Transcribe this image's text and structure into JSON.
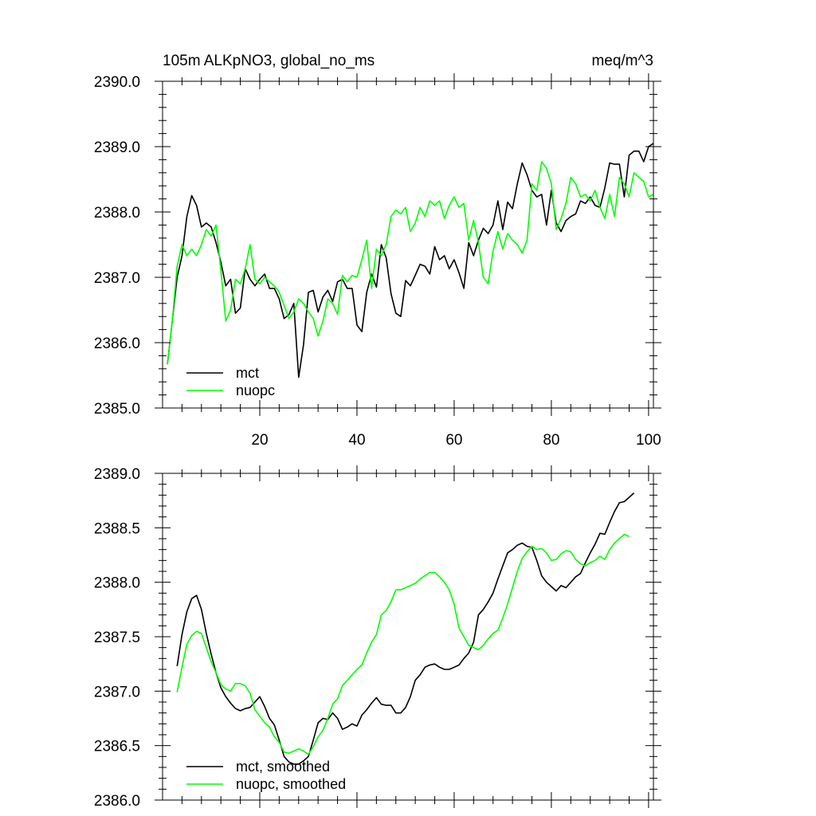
{
  "chart_data": [
    {
      "type": "line",
      "title": "105m ALKpNO3, global_no_ms",
      "units": "meq/m^3",
      "xlim": [
        0,
        101
      ],
      "ylim": [
        2385.0,
        2390.0
      ],
      "x_ticks": [
        20,
        40,
        60,
        80,
        100
      ],
      "x_tick_labels": [
        "20",
        "40",
        "60",
        "80",
        "100"
      ],
      "y_ticks": [
        2385.0,
        2386.0,
        2387.0,
        2388.0,
        2389.0,
        2390.0
      ],
      "y_tick_labels": [
        "2385.0",
        "2386.0",
        "2387.0",
        "2388.0",
        "2389.0",
        "2390.0"
      ],
      "legend_position": "bottom-left",
      "series": [
        {
          "name": "mct",
          "color": "#000000",
          "values": [
            2385.67,
            2386.33,
            2387.0,
            2387.33,
            2387.93,
            2388.25,
            2388.1,
            2387.77,
            2387.83,
            2387.77,
            2387.53,
            2387.23,
            2386.87,
            2386.97,
            2386.45,
            2386.53,
            2387.13,
            2386.97,
            2386.87,
            2386.97,
            2387.05,
            2386.83,
            2386.83,
            2386.67,
            2386.37,
            2386.43,
            2386.6,
            2385.47,
            2385.97,
            2386.77,
            2386.8,
            2386.47,
            2386.7,
            2386.8,
            2386.63,
            2386.93,
            2386.97,
            2386.83,
            2386.83,
            2386.27,
            2386.17,
            2386.77,
            2387.05,
            2386.85,
            2387.5,
            2387.3,
            2386.75,
            2386.45,
            2386.4,
            2386.95,
            2386.87,
            2387.03,
            2387.2,
            2387.17,
            2387.05,
            2387.47,
            2387.27,
            2387.33,
            2387.13,
            2387.27,
            2387.07,
            2386.83,
            2387.53,
            2387.33,
            2387.57,
            2387.75,
            2387.67,
            2387.8,
            2388.17,
            2387.73,
            2388.15,
            2388.05,
            2388.43,
            2388.75,
            2388.57,
            2388.33,
            2388.23,
            2388.27,
            2387.8,
            2388.33,
            2387.83,
            2387.7,
            2387.87,
            2387.93,
            2387.97,
            2388.17,
            2388.13,
            2388.23,
            2388.1,
            2388.07,
            2388.37,
            2388.75,
            2388.73,
            2388.73,
            2388.23,
            2388.87,
            2388.93,
            2388.93,
            2388.77,
            2389.0,
            2389.05
          ]
        },
        {
          "name": "nuopc",
          "color": "#00ff00",
          "values": [
            2385.67,
            2386.33,
            2387.17,
            2387.5,
            2387.33,
            2387.43,
            2387.33,
            2387.5,
            2387.73,
            2387.63,
            2387.8,
            2387.1,
            2386.33,
            2386.5,
            2386.97,
            2386.9,
            2387.13,
            2387.5,
            2386.97,
            2386.9,
            2387.0,
            2386.93,
            2386.87,
            2386.77,
            2386.57,
            2386.37,
            2386.47,
            2386.67,
            2386.6,
            2386.47,
            2386.37,
            2386.1,
            2386.33,
            2386.67,
            2386.6,
            2386.43,
            2387.03,
            2386.93,
            2387.03,
            2387.0,
            2387.27,
            2387.57,
            2386.83,
            2387.43,
            2387.33,
            2387.5,
            2387.93,
            2388.03,
            2387.97,
            2388.07,
            2387.7,
            2387.83,
            2388.07,
            2387.93,
            2388.17,
            2388.1,
            2388.17,
            2387.9,
            2388.1,
            2388.23,
            2388.07,
            2388.13,
            2387.57,
            2387.87,
            2387.53,
            2387.0,
            2386.9,
            2387.4,
            2387.7,
            2387.43,
            2387.67,
            2387.57,
            2387.5,
            2387.37,
            2387.57,
            2388.43,
            2388.33,
            2388.77,
            2388.67,
            2388.43,
            2387.73,
            2387.9,
            2388.13,
            2388.53,
            2388.43,
            2388.23,
            2388.27,
            2388.17,
            2388.33,
            2388.07,
            2387.9,
            2388.27,
            2387.93,
            2388.53,
            2388.43,
            2388.23,
            2388.6,
            2388.53,
            2388.47,
            2388.23,
            2388.27
          ]
        }
      ]
    },
    {
      "type": "line",
      "title": "",
      "xlim": [
        0,
        101
      ],
      "ylim": [
        2386.0,
        2389.0
      ],
      "x_ticks": [
        20,
        40,
        60,
        80,
        100
      ],
      "y_ticks": [
        2386.0,
        2386.5,
        2387.0,
        2387.5,
        2388.0,
        2388.5,
        2389.0
      ],
      "y_tick_labels": [
        "2386.0",
        "2386.5",
        "2387.0",
        "2387.5",
        "2388.0",
        "2388.5",
        "2389.0"
      ],
      "legend_position": "bottom-left",
      "series": [
        {
          "name": "mct, smoothed",
          "color": "#000000",
          "x_start": 3,
          "values": [
            2387.23,
            2387.52,
            2387.73,
            2387.85,
            2387.88,
            2387.75,
            2387.53,
            2387.34,
            2387.17,
            2387.03,
            2386.95,
            2386.89,
            2386.84,
            2386.82,
            2386.84,
            2386.85,
            2386.9,
            2386.95,
            2386.86,
            2386.75,
            2386.69,
            2386.55,
            2386.4,
            2386.35,
            2386.33,
            2386.33,
            2386.36,
            2386.4,
            2386.55,
            2386.71,
            2386.75,
            2386.74,
            2386.8,
            2386.75,
            2386.65,
            2386.67,
            2386.7,
            2386.68,
            2386.78,
            2386.83,
            2386.89,
            2386.94,
            2386.88,
            2386.87,
            2386.87,
            2386.8,
            2386.8,
            2386.85,
            2386.95,
            2387.1,
            2387.15,
            2387.22,
            2387.24,
            2387.25,
            2387.22,
            2387.2,
            2387.2,
            2387.22,
            2387.24,
            2387.3,
            2387.35,
            2387.45,
            2387.7,
            2387.75,
            2387.82,
            2387.9,
            2388.03,
            2388.15,
            2388.27,
            2388.3,
            2388.34,
            2388.36,
            2388.33,
            2388.32,
            2388.2,
            2388.06,
            2388.0,
            2387.96,
            2387.92,
            2387.97,
            2387.95,
            2388.0,
            2388.05,
            2388.08,
            2388.18,
            2388.27,
            2388.35,
            2388.45,
            2388.44,
            2388.55,
            2388.65,
            2388.73,
            2388.74,
            2388.78,
            2388.82
          ]
        },
        {
          "name": "nuopc, smoothed",
          "color": "#00ff00",
          "x_start": 3,
          "values": [
            2386.99,
            2387.22,
            2387.43,
            2387.51,
            2387.55,
            2387.53,
            2387.4,
            2387.27,
            2387.17,
            2387.06,
            2387.02,
            2387.0,
            2387.07,
            2387.07,
            2387.05,
            2386.98,
            2386.83,
            2386.77,
            2386.71,
            2386.67,
            2386.58,
            2386.53,
            2386.44,
            2386.43,
            2386.45,
            2386.47,
            2386.45,
            2386.42,
            2386.49,
            2386.58,
            2386.64,
            2386.75,
            2386.88,
            2386.93,
            2387.05,
            2387.1,
            2387.15,
            2387.2,
            2387.24,
            2387.35,
            2387.45,
            2387.52,
            2387.7,
            2387.74,
            2387.82,
            2387.93,
            2387.93,
            2387.95,
            2387.97,
            2387.99,
            2388.03,
            2388.06,
            2388.09,
            2388.09,
            2388.05,
            2388.0,
            2387.93,
            2387.8,
            2387.58,
            2387.5,
            2387.42,
            2387.4,
            2387.38,
            2387.42,
            2387.48,
            2387.53,
            2387.56,
            2387.67,
            2387.8,
            2387.95,
            2388.1,
            2388.22,
            2388.28,
            2388.33,
            2388.3,
            2388.31,
            2388.27,
            2388.2,
            2388.21,
            2388.26,
            2388.29,
            2388.28,
            2388.21,
            2388.17,
            2388.15,
            2388.18,
            2388.2,
            2388.24,
            2388.21,
            2388.3,
            2388.36,
            2388.4,
            2388.44,
            2388.42
          ]
        }
      ]
    }
  ]
}
